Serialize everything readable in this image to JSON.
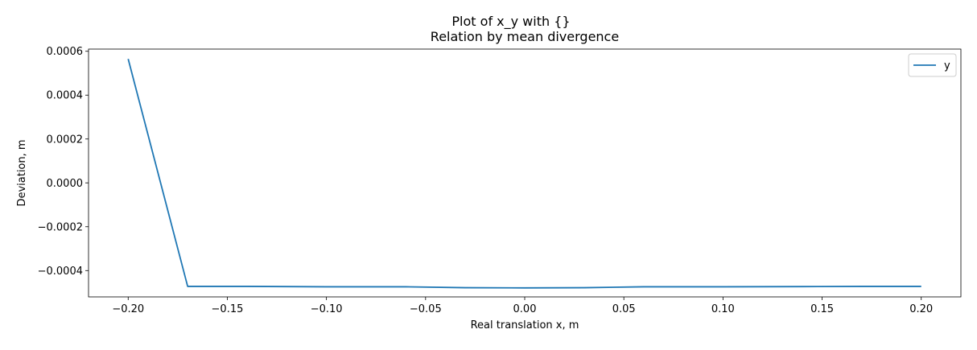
{
  "chart_data": {
    "type": "line",
    "suptitle": "Plot of x_y with {}",
    "title": "Relation by mean divergence",
    "xlabel": "Real translation x, m",
    "ylabel": "Deviation, m",
    "xlim": [
      -0.22,
      0.22
    ],
    "ylim": [
      -0.00052,
      0.00061
    ],
    "xticks": [
      -0.2,
      -0.15,
      -0.1,
      -0.05,
      0.0,
      0.05,
      0.1,
      0.15,
      0.2
    ],
    "xtick_labels": [
      "−0.20",
      "−0.15",
      "−0.10",
      "−0.05",
      "0.00",
      "0.05",
      "0.10",
      "0.15",
      "0.20"
    ],
    "yticks": [
      -0.0004,
      -0.0002,
      0.0,
      0.0002,
      0.0004,
      0.0006
    ],
    "ytick_labels": [
      "−0.0004",
      "−0.0002",
      "0.0000",
      "0.0002",
      "0.0004",
      "0.0006"
    ],
    "grid": false,
    "legend_position": "top-right",
    "series": [
      {
        "name": "y",
        "color": "#1f77b4",
        "x": [
          -0.2,
          -0.17,
          -0.14,
          -0.1,
          -0.06,
          -0.03,
          0.0,
          0.03,
          0.06,
          0.1,
          0.14,
          0.17,
          0.2
        ],
        "y": [
          0.000565,
          -0.000472,
          -0.000472,
          -0.000474,
          -0.000474,
          -0.000478,
          -0.000479,
          -0.000478,
          -0.000474,
          -0.000474,
          -0.000473,
          -0.000472,
          -0.000472
        ]
      }
    ]
  }
}
